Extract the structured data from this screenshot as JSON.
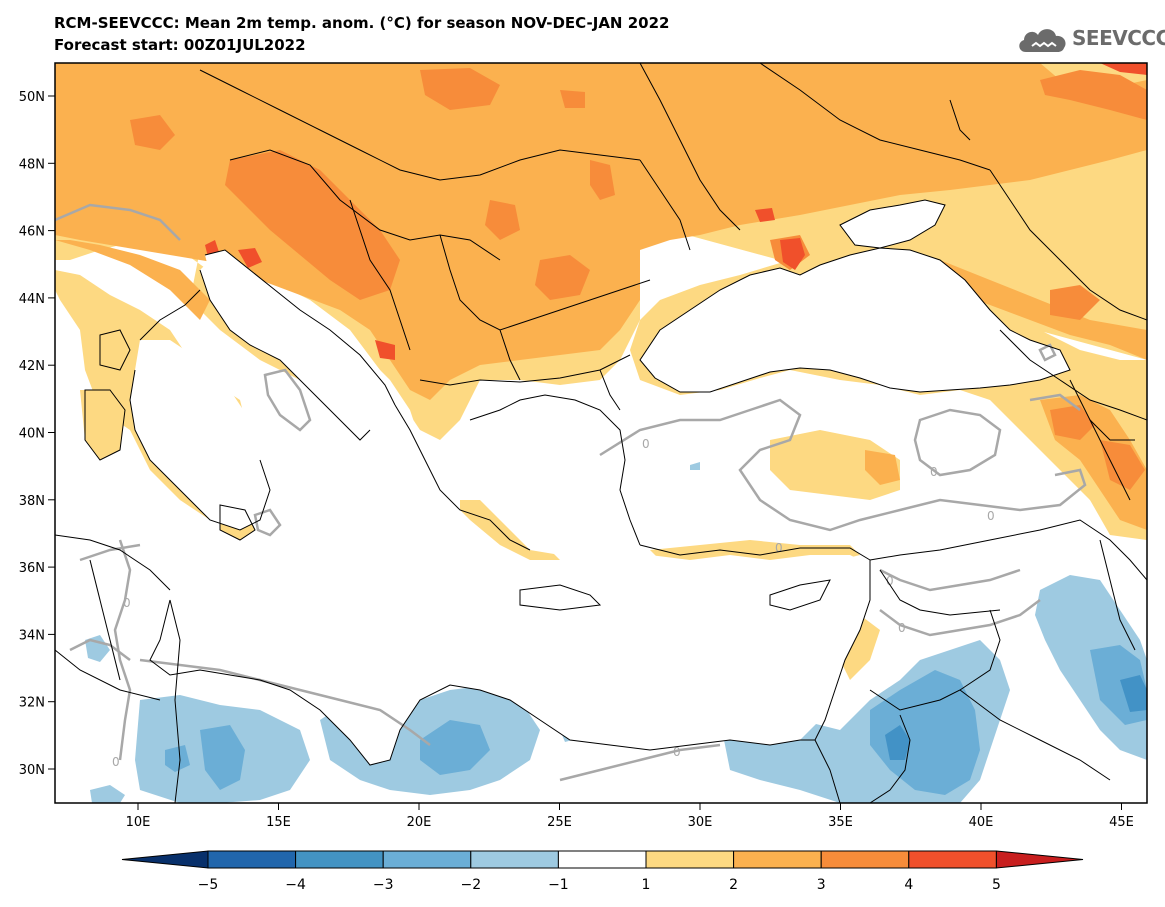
{
  "header": {
    "title_line_1": "RCM-SEEVCCC: Mean 2m temp. anom. (°C) for season NOV-DEC-JAN 2022",
    "title_line_2": "Forecast start: 00Z01JUL2022"
  },
  "logo": {
    "text": "SEEVCCC",
    "icon": "cloud-logo-icon"
  },
  "map": {
    "lat_labels": [
      "50N",
      "48N",
      "46N",
      "44N",
      "42N",
      "40N",
      "38N",
      "36N",
      "34N",
      "32N",
      "30N"
    ],
    "lon_labels": [
      "10E",
      "15E",
      "20E",
      "25E",
      "30E",
      "35E",
      "40E",
      "45E"
    ],
    "contour_label": "0",
    "colors": {
      "ocean": "#ffffff",
      "land_zero": "#ffffff",
      "warm_1": "#fdd982",
      "warm_2": "#fbb14f",
      "warm_3": "#f78c3a",
      "warm_4": "#f0502b",
      "cool_1": "#9ecae1",
      "cool_2": "#6baed6",
      "cool_3": "#4292c6",
      "contour": "#a8a8a8",
      "border": "#000000"
    }
  },
  "colorbar": {
    "labels": [
      "−5",
      "−4",
      "−3",
      "−2",
      "−1",
      "1",
      "2",
      "3",
      "4",
      "5"
    ],
    "colors": [
      "#08306b",
      "#2166ac",
      "#4393c3",
      "#6baed6",
      "#9ecae1",
      "#ffffff",
      "#fdd982",
      "#fbb14f",
      "#f78c3a",
      "#f0502b",
      "#c81e1e"
    ]
  }
}
